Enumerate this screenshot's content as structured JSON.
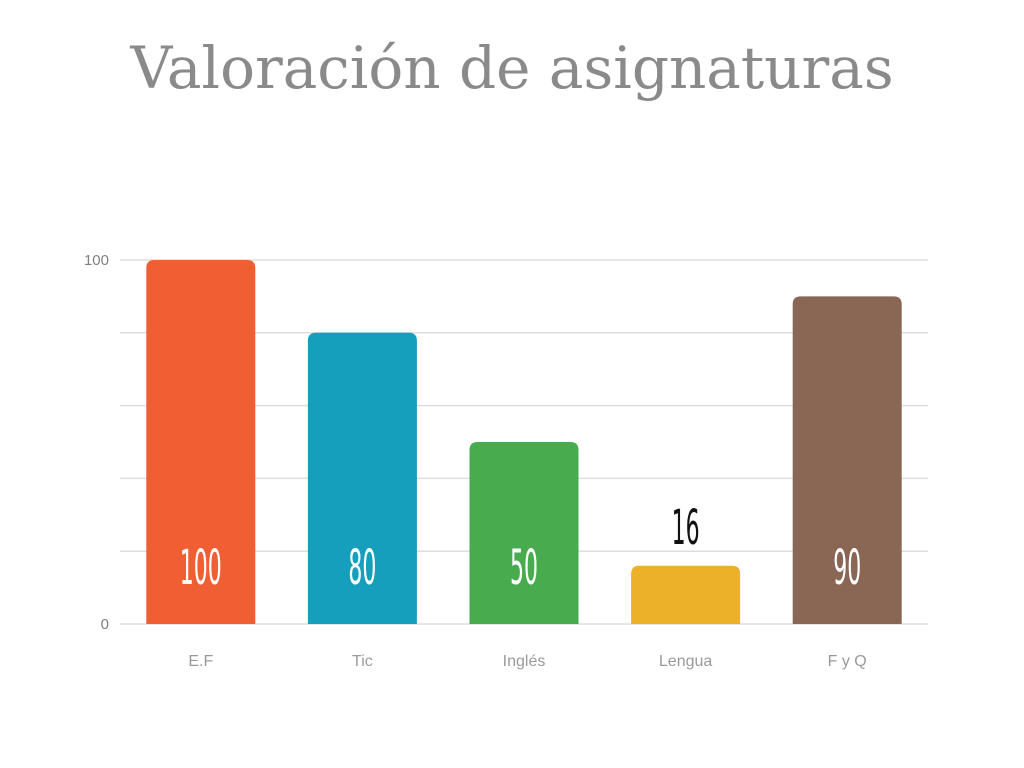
{
  "chart_data": {
    "type": "bar",
    "title": "Valoración de asignaturas",
    "xlabel": "",
    "ylabel": "",
    "categories": [
      "E.F",
      "Tic",
      "Inglés",
      "Lengua",
      "F y Q"
    ],
    "values": [
      100,
      80,
      50,
      16,
      90
    ],
    "data_labels": [
      "100",
      "80",
      "50",
      "16",
      "90"
    ],
    "colors": [
      "#f05f33",
      "#159fbc",
      "#48ab4d",
      "#ebb128",
      "#8a6654"
    ],
    "ylim": [
      0,
      100
    ],
    "y_ticks": [
      {
        "value": 0,
        "label": "0"
      },
      {
        "value": 20,
        "label": ""
      },
      {
        "value": 40,
        "label": ""
      },
      {
        "value": 60,
        "label": ""
      },
      {
        "value": 80,
        "label": ""
      },
      {
        "value": 100,
        "label": "100"
      }
    ],
    "grid": true,
    "legend": "none"
  }
}
